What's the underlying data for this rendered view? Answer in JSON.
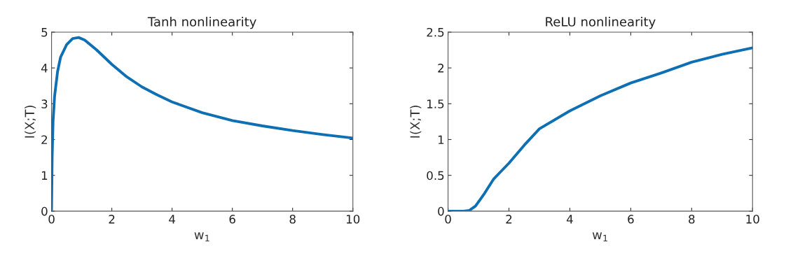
{
  "chart_data": [
    {
      "type": "line",
      "title": "Tanh nonlinearity",
      "xlabel": "w$_{1}$",
      "ylabel": "I(X;T)",
      "series": [
        {
          "color": "#0f6fb3",
          "x": [
            0,
            0.02,
            0.05,
            0.1,
            0.2,
            0.3,
            0.5,
            0.7,
            0.9,
            1.1,
            1.5,
            2,
            2.5,
            3,
            3.5,
            4,
            5,
            6,
            7,
            8,
            9,
            10
          ],
          "values": [
            0,
            1.5,
            2.5,
            3.2,
            3.9,
            4.3,
            4.65,
            4.82,
            4.85,
            4.78,
            4.5,
            4.1,
            3.75,
            3.47,
            3.25,
            3.05,
            2.75,
            2.53,
            2.38,
            2.25,
            2.14,
            2.04
          ]
        }
      ],
      "xlim": [
        0,
        10
      ],
      "xticks": [
        0,
        2,
        4,
        6,
        8,
        10
      ],
      "ylim": [
        0,
        5
      ],
      "yticks": [
        0,
        1,
        2,
        3,
        4,
        5
      ],
      "grid": false,
      "legend": false
    },
    {
      "type": "line",
      "title": "ReLU nonlinearity",
      "xlabel": "w$_{1}$",
      "ylabel": "I(X;T)",
      "series": [
        {
          "color": "#0f6fb3",
          "x": [
            0,
            0.5,
            0.7,
            0.9,
            1.0,
            1.2,
            1.5,
            2,
            2.5,
            3,
            4,
            5,
            6,
            7,
            8,
            9,
            10
          ],
          "values": [
            0,
            0,
            0.01,
            0.07,
            0.13,
            0.25,
            0.45,
            0.67,
            0.92,
            1.15,
            1.4,
            1.61,
            1.79,
            1.93,
            2.08,
            2.19,
            2.28
          ]
        }
      ],
      "xlim": [
        0,
        10
      ],
      "xticks": [
        0,
        2,
        4,
        6,
        8,
        10
      ],
      "ylim": [
        0,
        2.5
      ],
      "yticks": [
        0,
        0.5,
        1,
        1.5,
        2,
        2.5
      ],
      "grid": false,
      "legend": false
    }
  ]
}
